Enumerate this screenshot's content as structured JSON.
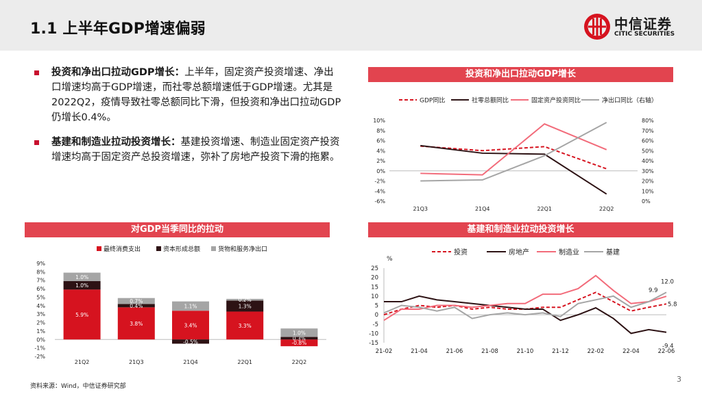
{
  "header": {
    "title": "1.1 上半年GDP增速偏弱",
    "logo_cn": "中信证券",
    "logo_en": "CITIC SECURITIES"
  },
  "bullets": [
    {
      "head": "投资和净出口拉动GDP增长：",
      "body": "上半年，固定资产投资增速、净出口增速均高于GDP增速，而社零总额增速低于GDP增速。尤其是2022Q2，疫情导致社零总额同比下滑，但投资和净出口拉动GDP仍增长0.4%。"
    },
    {
      "head": "基建和制造业拉动投资增长：",
      "body": "基建投资增速、制造业固定资产投资增速均高于固定资产总投资增速，弥补了房地产投资下滑的拖累。"
    }
  ],
  "footnote": "资料来源：Wind，中信证券研究部",
  "page_number": "3",
  "colors": {
    "accent": "#e2444f",
    "red": "#d6131f",
    "dark": "#2d1214",
    "gray": "#a5a5a5",
    "pink": "#f26b7a"
  },
  "chart_data": [
    {
      "id": "gdp-contribution",
      "panel_title": "投资和净出口拉动GDP增长",
      "type": "line",
      "categories": [
        "21Q3",
        "21Q4",
        "22Q1",
        "22Q2"
      ],
      "series": [
        {
          "name": "GDP同比",
          "axis": "left",
          "values": [
            4.9,
            4.0,
            4.8,
            0.4
          ]
        },
        {
          "name": "社零总额同比",
          "axis": "left",
          "values": [
            5.0,
            3.5,
            3.3,
            -4.6
          ]
        },
        {
          "name": "固定资产投资同比",
          "axis": "left",
          "values": [
            -0.5,
            -0.8,
            9.3,
            4.2
          ]
        },
        {
          "name": "净出口同比（右轴）",
          "axis": "right",
          "values": [
            20,
            21,
            45,
            78
          ]
        }
      ],
      "ylim_left": [
        -6,
        10
      ],
      "ylim_right": [
        0,
        80
      ],
      "yticks_left": [
        "10%",
        "8%",
        "6%",
        "4%",
        "2%",
        "0%",
        "-2%",
        "-4%",
        "-6%"
      ],
      "yticks_right": [
        "80%",
        "70%",
        "60%",
        "50%",
        "40%",
        "30%",
        "20%",
        "10%",
        "0%"
      ]
    },
    {
      "id": "quarterly-pull",
      "panel_title": "对GDP当季同比的拉动",
      "type": "bar",
      "stacked": true,
      "categories": [
        "21Q2",
        "21Q3",
        "21Q4",
        "22Q1",
        "22Q2"
      ],
      "series": [
        {
          "name": "最终消费支出",
          "values": [
            5.9,
            3.8,
            3.4,
            3.3,
            -0.8
          ]
        },
        {
          "name": "资本形成总额",
          "values": [
            1.0,
            0.4,
            -0.5,
            1.3,
            0.3
          ]
        },
        {
          "name": "货物和服务净出口",
          "values": [
            1.0,
            0.7,
            1.1,
            0.2,
            1.0
          ]
        }
      ],
      "labels": [
        [
          "5.9%",
          "1.0%",
          "1.0%"
        ],
        [
          "3.8%",
          "0.4%",
          "0.7%"
        ],
        [
          "3.4%",
          "-0.5%",
          "1.1%"
        ],
        [
          "3.3%",
          "1.3%",
          "0.2%"
        ],
        [
          "-0.8%",
          "0.3%",
          "1.0%"
        ]
      ],
      "ylim": [
        -2,
        9
      ],
      "yticks": [
        "9%",
        "8%",
        "7%",
        "6%",
        "5%",
        "4%",
        "3%",
        "2%",
        "1%",
        "0%",
        "-1%",
        "-2%"
      ]
    },
    {
      "id": "investment-growth",
      "panel_title": "基建和制造业拉动投资增长",
      "type": "line",
      "unit_label": "%",
      "categories": [
        "21-02",
        "21-03",
        "21-04",
        "21-05",
        "21-06",
        "21-07",
        "21-08",
        "21-09",
        "21-10",
        "21-11",
        "21-12",
        "22-01",
        "22-02",
        "22-03",
        "22-04",
        "22-05",
        "22-06"
      ],
      "xtick_labels": [
        "21-02",
        "21-04",
        "21-06",
        "21-08",
        "21-10",
        "21-12",
        "22-02",
        "22-04",
        "22-06"
      ],
      "series": [
        {
          "name": "投资",
          "values": [
            0,
            3,
            5,
            4,
            5,
            3,
            4,
            3,
            3,
            4,
            4,
            8,
            12,
            7,
            2,
            4,
            5.8
          ]
        },
        {
          "name": "房地产",
          "values": [
            7,
            7,
            10,
            8,
            7,
            6,
            5,
            4,
            3,
            3,
            -3,
            0,
            3.7,
            -2,
            -10,
            -8,
            -9.4
          ]
        },
        {
          "name": "制造业",
          "values": [
            -3,
            3,
            3,
            5,
            5,
            4,
            5,
            6,
            6,
            11,
            11,
            14,
            21,
            13,
            6,
            7,
            9.9
          ]
        },
        {
          "name": "基建",
          "values": [
            1,
            5,
            4,
            2,
            4,
            -2,
            0,
            1,
            0,
            1,
            -1,
            6,
            8,
            10,
            4,
            7,
            12.0
          ]
        }
      ],
      "end_labels": [
        "5.8",
        "-9.4",
        "9.9",
        "12.0"
      ],
      "ylim": [
        -15,
        25
      ],
      "yticks": [
        "25",
        "20",
        "15",
        "10",
        "5",
        "0",
        "-5",
        "-10",
        "-15"
      ]
    }
  ]
}
